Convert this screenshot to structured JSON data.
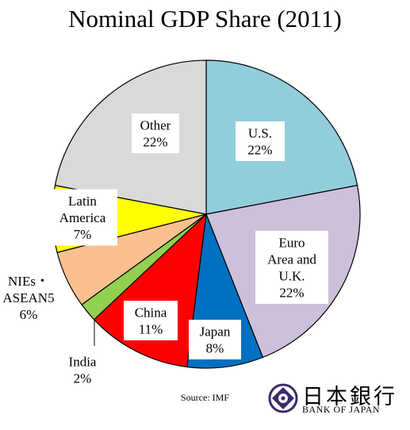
{
  "chart_data": {
    "type": "pie",
    "title": "Nominal GDP Share (2011)",
    "slices": [
      {
        "label_lines": [
          "U.S.",
          "22%"
        ],
        "value": 22,
        "color": "#92CDDC"
      },
      {
        "label_lines": [
          "Euro",
          "Area and",
          "U.K.",
          "22%"
        ],
        "value": 22,
        "color": "#CCC0DA"
      },
      {
        "label_lines": [
          "Japan",
          "8%"
        ],
        "value": 8,
        "color": "#0070C0"
      },
      {
        "label_lines": [
          "China",
          "11%"
        ],
        "value": 11,
        "color": "#FF0000"
      },
      {
        "label_lines": [
          "India",
          "2%"
        ],
        "value": 2,
        "color": "#92D050"
      },
      {
        "label_lines": [
          "NIEs・",
          "ASEAN5",
          "6%"
        ],
        "value": 6,
        "color": "#FAC090"
      },
      {
        "label_lines": [
          "Latin",
          "America",
          "7%"
        ],
        "value": 7,
        "color": "#FFFF00"
      },
      {
        "label_lines": [
          "Other",
          "22%"
        ],
        "value": 22,
        "color": "#D9D9D9"
      }
    ],
    "start_position": "12 o'clock, clockwise"
  },
  "source": "Source: IMF",
  "logo": {
    "kanji": "日本銀行",
    "english": "BANK OF JAPAN",
    "icon": "bank-of-japan-emblem-icon"
  }
}
